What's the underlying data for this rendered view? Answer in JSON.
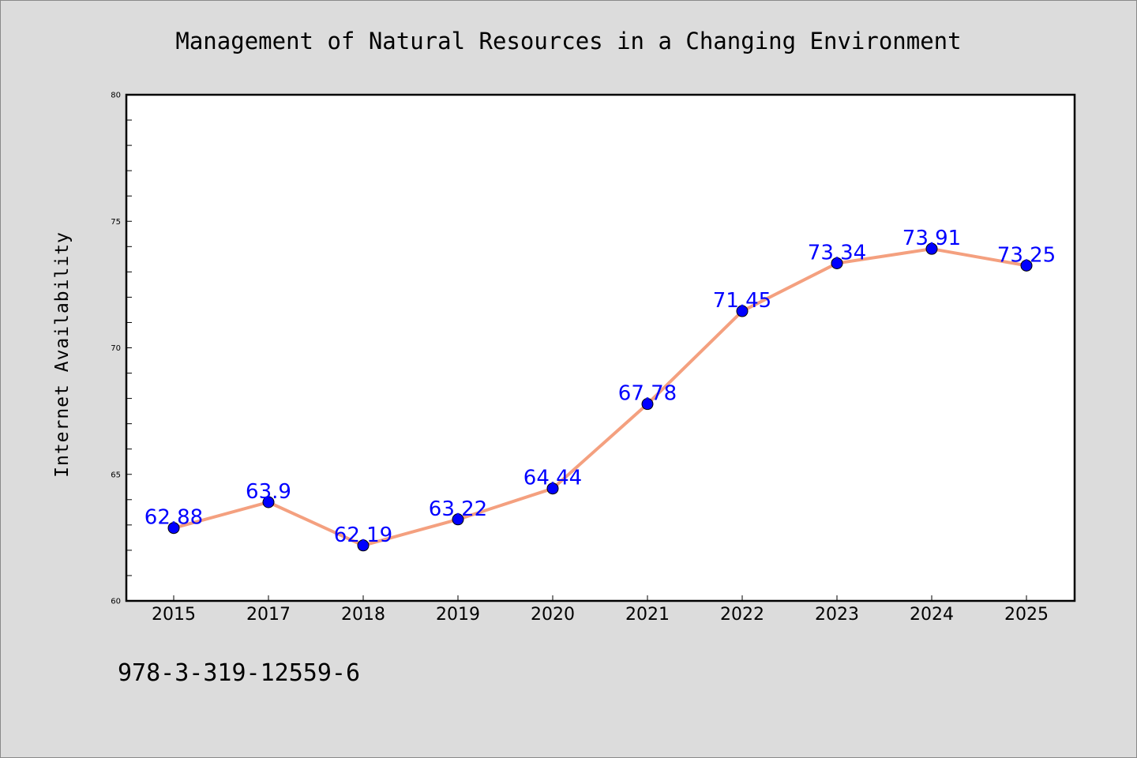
{
  "chart_data": {
    "type": "line",
    "title": "Management of Natural Resources in a Changing Environment",
    "xlabel": "",
    "ylabel": "Internet Availability",
    "categories": [
      "2015",
      "2017",
      "2018",
      "2019",
      "2020",
      "2021",
      "2022",
      "2023",
      "2024",
      "2025"
    ],
    "values": [
      62.88,
      63.9,
      62.19,
      63.22,
      64.44,
      67.78,
      71.45,
      73.34,
      73.91,
      73.25
    ],
    "data_labels": [
      "62.88",
      "63.9",
      "62.19",
      "63.22",
      "64.44",
      "67.78",
      "71.45",
      "73.34",
      "73.91",
      "73.25"
    ],
    "ylim": [
      60,
      80
    ],
    "y_ticks": [
      "60",
      "65",
      "70",
      "75",
      "80"
    ],
    "grid": false,
    "legend": "none",
    "colors": {
      "line": "#f4a07f",
      "marker": "#0000ff",
      "data_label": "#0000ff",
      "plot_background": "#ffffff",
      "figure_background": "#dcdcdc"
    }
  },
  "footer": {
    "isbn": "978-3-319-12559-6"
  }
}
